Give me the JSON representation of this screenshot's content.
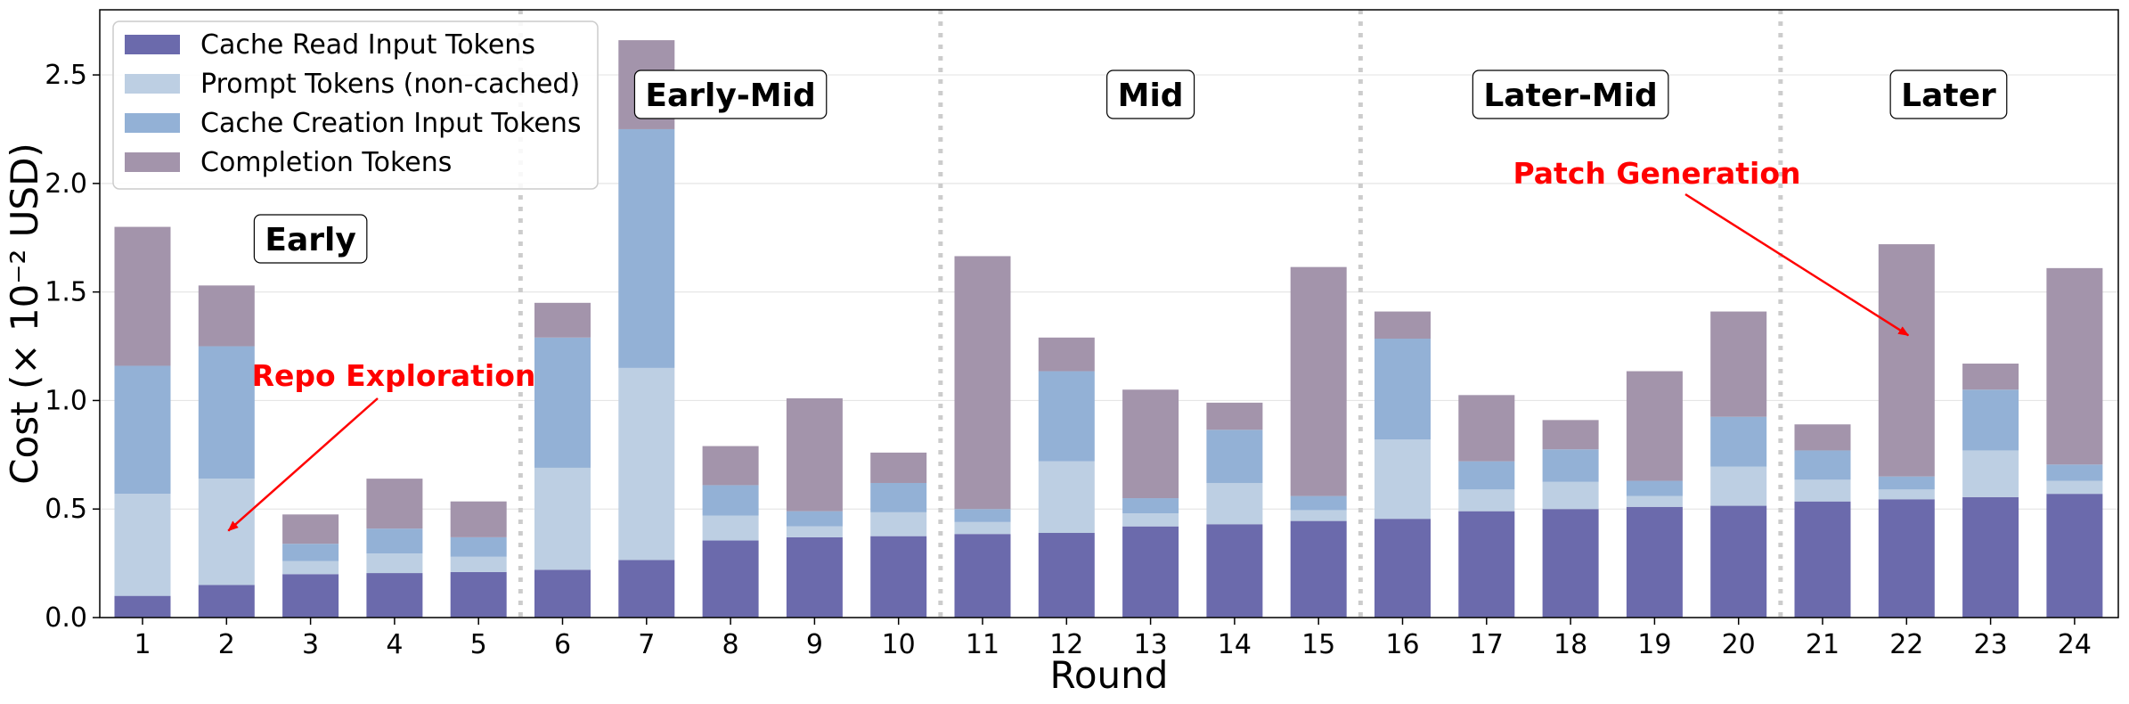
{
  "chart_data": {
    "type": "bar",
    "stacked": true,
    "xlabel": "Round",
    "ylabel": "Cost (× 10⁻² USD)",
    "ylim": [
      0,
      2.8
    ],
    "yticks": [
      0.0,
      0.5,
      1.0,
      1.5,
      2.0,
      2.5
    ],
    "ytick_labels": [
      "0.0",
      "0.5",
      "1.0",
      "1.5",
      "2.0",
      "2.5"
    ],
    "grid": "horizontal",
    "legend_position": "top-left",
    "categories": [
      "1",
      "2",
      "3",
      "4",
      "5",
      "6",
      "7",
      "8",
      "9",
      "10",
      "11",
      "12",
      "13",
      "14",
      "15",
      "16",
      "17",
      "18",
      "19",
      "20",
      "21",
      "22",
      "23",
      "24"
    ],
    "series": [
      {
        "name": "Cache Read Input Tokens",
        "color": "#6b6aac",
        "values": [
          0.1,
          0.15,
          0.2,
          0.205,
          0.21,
          0.22,
          0.265,
          0.355,
          0.37,
          0.375,
          0.385,
          0.39,
          0.42,
          0.43,
          0.445,
          0.455,
          0.49,
          0.5,
          0.51,
          0.515,
          0.535,
          0.545,
          0.555,
          0.57
        ]
      },
      {
        "name": "Prompt Tokens (non-cached)",
        "color": "#bdcfe3",
        "values": [
          0.47,
          0.49,
          0.06,
          0.09,
          0.07,
          0.47,
          0.885,
          0.115,
          0.05,
          0.11,
          0.055,
          0.33,
          0.06,
          0.19,
          0.05,
          0.365,
          0.1,
          0.125,
          0.05,
          0.18,
          0.1,
          0.045,
          0.215,
          0.06
        ]
      },
      {
        "name": "Cache Creation Input Tokens",
        "color": "#93b1d6",
        "values": [
          0.59,
          0.61,
          0.08,
          0.115,
          0.09,
          0.6,
          1.1,
          0.14,
          0.07,
          0.135,
          0.06,
          0.415,
          0.07,
          0.245,
          0.065,
          0.465,
          0.13,
          0.15,
          0.07,
          0.23,
          0.135,
          0.06,
          0.28,
          0.075
        ]
      },
      {
        "name": "Completion Tokens",
        "color": "#a394ab",
        "values": [
          0.64,
          0.28,
          0.135,
          0.23,
          0.165,
          0.16,
          0.41,
          0.18,
          0.52,
          0.14,
          1.165,
          0.155,
          0.5,
          0.125,
          1.055,
          0.125,
          0.305,
          0.135,
          0.505,
          0.485,
          0.12,
          1.07,
          0.12,
          0.905
        ]
      }
    ],
    "phases": [
      {
        "label": "Early",
        "start": 1,
        "end": 5
      },
      {
        "label": "Early-Mid",
        "start": 6,
        "end": 10
      },
      {
        "label": "Mid",
        "start": 11,
        "end": 15
      },
      {
        "label": "Later-Mid",
        "start": 16,
        "end": 20
      },
      {
        "label": "Later",
        "start": 21,
        "end": 24
      }
    ],
    "phase_dividers_after_round": [
      5,
      10,
      15,
      20
    ],
    "annotations": [
      {
        "text": "Repo Exploration",
        "color": "#ff0000",
        "points_to_round": 2,
        "points_to_value": 0.4
      },
      {
        "text": "Patch Generation",
        "color": "#ff0000",
        "points_to_round": 22,
        "points_to_value": 1.3
      }
    ]
  }
}
